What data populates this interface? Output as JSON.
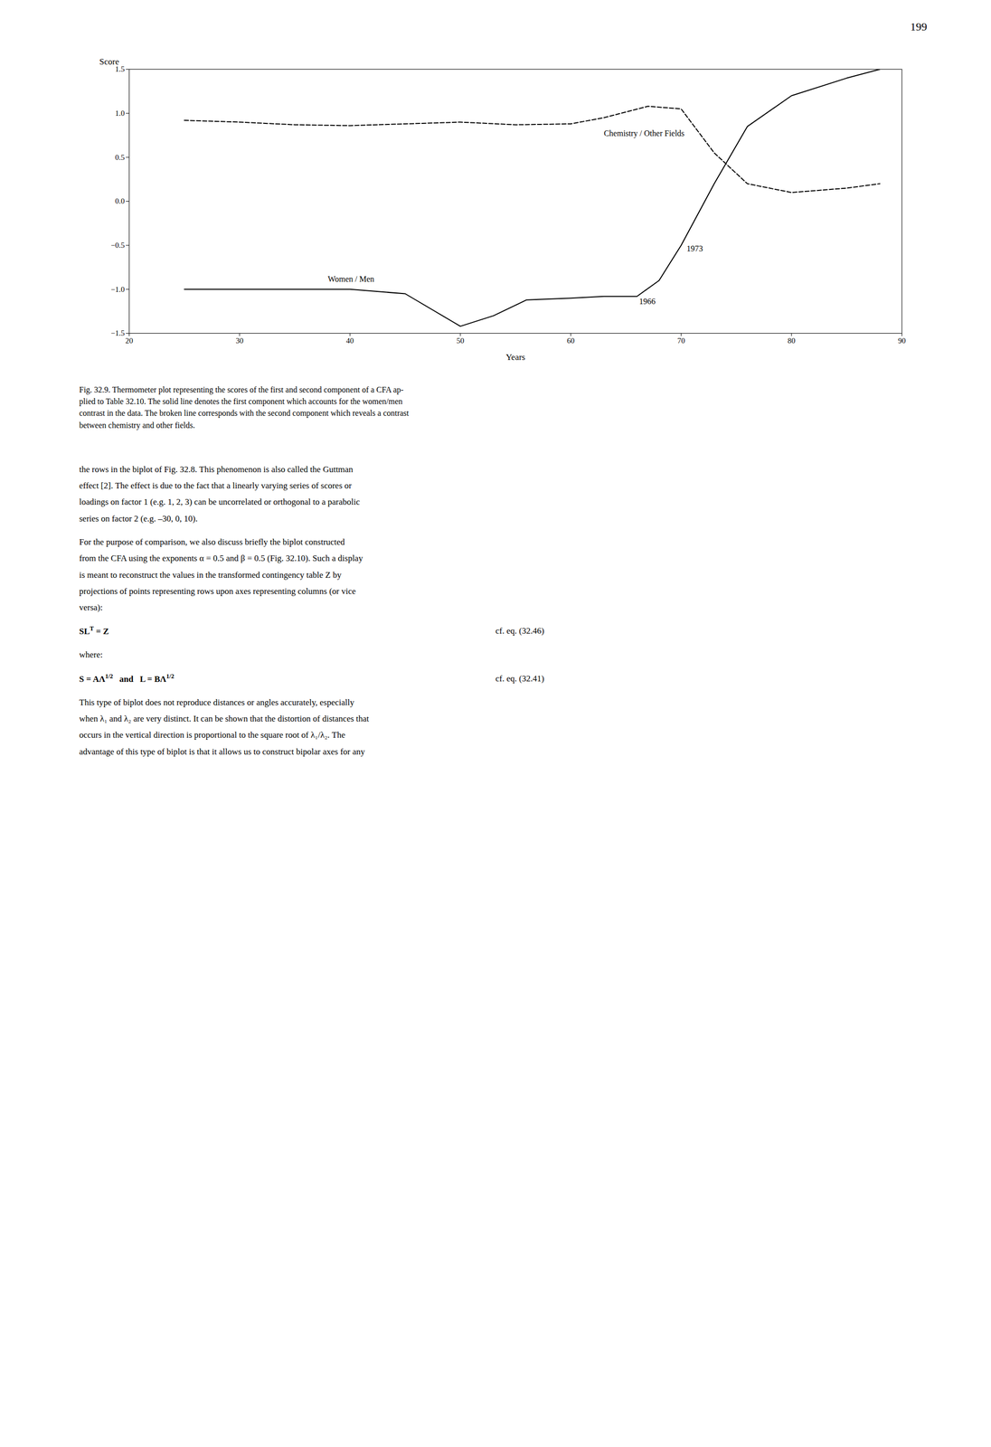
{
  "page_number": "199",
  "chart_data": {
    "type": "line",
    "xlabel": "Years",
    "ylabel": "Score",
    "xlim": [
      20,
      90
    ],
    "ylim": [
      -1.5,
      1.5
    ],
    "xticks": [
      20,
      30,
      40,
      50,
      60,
      70,
      80,
      90
    ],
    "yticks": [
      -1.5,
      {
        "value": -1,
        "label": "−1.0"
      },
      -0.5,
      {
        "value": 0,
        "label": "0.0"
      },
      0.5,
      {
        "value": 1,
        "label": "1.0"
      },
      1.5
    ],
    "series": [
      {
        "color": "#000000",
        "line_style": "solid",
        "x": [
          25,
          30,
          35,
          40,
          45,
          50,
          53,
          56,
          60,
          63,
          66,
          68,
          70,
          73,
          76,
          80,
          85,
          88
        ],
        "values": [
          -1.0,
          -1.0,
          -1.0,
          -1.0,
          -1.05,
          -1.42,
          -1.3,
          -1.12,
          -1.1,
          -1.08,
          -1.08,
          -0.9,
          -0.5,
          0.2,
          0.85,
          1.2,
          1.4,
          1.5
        ]
      },
      {
        "color": "#000000",
        "line_style": "dashed",
        "x": [
          25,
          30,
          35,
          40,
          45,
          50,
          55,
          60,
          63,
          67,
          70,
          73,
          76,
          80,
          85,
          88
        ],
        "values": [
          0.92,
          0.9,
          0.87,
          0.86,
          0.88,
          0.9,
          0.87,
          0.88,
          0.95,
          1.08,
          1.05,
          0.55,
          0.2,
          0.1,
          0.15,
          0.2
        ]
      }
    ],
    "annotations": [
      {
        "text": "Women / Men",
        "x": 38,
        "y": -0.94
      },
      {
        "text": "Chemistry / Other Fields",
        "x": 63,
        "y": 0.72
      },
      {
        "text": "1966",
        "x": 66.2,
        "y": -1.08
      },
      {
        "text": "1973",
        "x": 70.5,
        "y": -0.48
      }
    ]
  },
  "caption": [
    "Fig. 32.9. Thermometer plot representing the scores of the first and second component of a CFA ap-",
    "plied to Table 32.10. The solid line denotes the first component which accounts for the women/men",
    "contrast in the data. The broken line corresponds with the second component which reveals a contrast",
    "between chemistry and other fields."
  ],
  "body": [
    {
      "lines": [
        "the rows in the biplot of Fig. 32.8. This phenomenon is also called the Guttman",
        "effect [2]. The effect is due to the fact that a linearly varying series of scores or",
        "loadings on factor 1 (e.g. 1, 2, 3) can be uncorrelated or orthogonal to a parabolic",
        "series on factor 2 (e.g. –30, 0, 10)."
      ]
    },
    {
      "lines": [
        "For the purpose of comparison, we also discuss briefly the biplot constructed",
        "from the CFA using the exponents α = 0.5 and β = 0.5 (Fig. 32.10). Such a display",
        "is meant to reconstruct the values in the transformed contingency table Z by",
        "projections of points representing rows upon axes representing columns (or vice",
        "versa):"
      ]
    },
    {
      "equation": [
        "SL",
        {
          "sup": "T"
        },
        " = Z"
      ],
      "ref": "cf. eq. (32.46)"
    },
    {
      "lines": [
        "where:"
      ]
    },
    {
      "equation": [
        "S = AΛ",
        {
          "sup": "1/2"
        },
        "   and   ",
        "L = BΛ",
        {
          "sup": "1/2"
        }
      ],
      "ref": "cf. eq. (32.41)"
    },
    {
      "lines": [
        "This type of biplot does not reproduce distances or angles accurately, especially",
        "when λ₁ and λ₂ are very distinct. It can be shown that the distortion of distances that",
        "occurs in the vertical direction is proportional to the square root of λ₁/λ₂. The",
        "advantage of this type of biplot is that it allows us to construct bipolar axes for any"
      ]
    }
  ]
}
